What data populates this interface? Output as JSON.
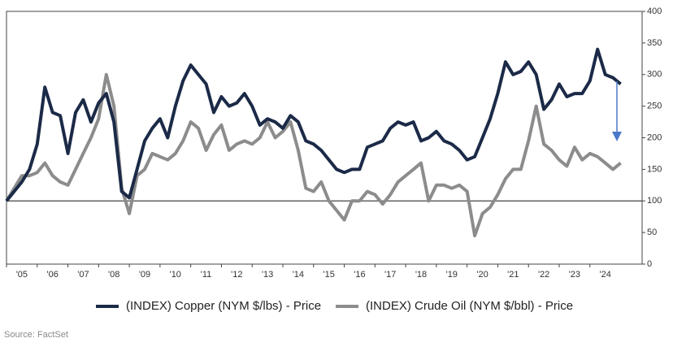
{
  "chart_data": {
    "type": "line",
    "source": "Source: FactSet",
    "x": [
      2005,
      2005.25,
      2005.5,
      2005.75,
      2006,
      2006.25,
      2006.5,
      2006.75,
      2007,
      2007.25,
      2007.5,
      2007.75,
      2008,
      2008.25,
      2008.5,
      2008.75,
      2009,
      2009.25,
      2009.5,
      2009.75,
      2010,
      2010.25,
      2010.5,
      2010.75,
      2011,
      2011.25,
      2011.5,
      2011.75,
      2012,
      2012.25,
      2012.5,
      2012.75,
      2013,
      2013.25,
      2013.5,
      2013.75,
      2014,
      2014.25,
      2014.5,
      2014.75,
      2015,
      2015.25,
      2015.5,
      2015.75,
      2016,
      2016.25,
      2016.5,
      2016.75,
      2017,
      2017.25,
      2017.5,
      2017.75,
      2018,
      2018.25,
      2018.5,
      2018.75,
      2019,
      2019.25,
      2019.5,
      2019.75,
      2020,
      2020.25,
      2020.5,
      2020.75,
      2021,
      2021.25,
      2021.5,
      2021.75,
      2022,
      2022.25,
      2022.5,
      2022.75,
      2023,
      2023.25,
      2023.5,
      2023.75,
      2024,
      2024.25,
      2024.5,
      2024.75,
      2025
    ],
    "series": [
      {
        "name": "(INDEX) Copper (NYM $/lbs) - Price",
        "color": "#1b2a47",
        "values": [
          100,
          115,
          130,
          150,
          190,
          280,
          240,
          235,
          175,
          240,
          260,
          225,
          255,
          270,
          225,
          115,
          105,
          150,
          195,
          215,
          230,
          200,
          250,
          290,
          315,
          300,
          285,
          240,
          265,
          250,
          255,
          270,
          250,
          220,
          230,
          225,
          215,
          235,
          225,
          195,
          190,
          180,
          165,
          150,
          145,
          150,
          150,
          185,
          190,
          195,
          215,
          225,
          220,
          225,
          195,
          200,
          210,
          195,
          190,
          180,
          165,
          170,
          200,
          230,
          270,
          320,
          300,
          305,
          320,
          300,
          245,
          260,
          285,
          265,
          270,
          270,
          290,
          340,
          300,
          295,
          285
        ]
      },
      {
        "name": "(INDEX) Crude Oil (NYM $/bbl) - Price",
        "color": "#8c8c8c",
        "values": [
          100,
          120,
          140,
          140,
          145,
          160,
          140,
          130,
          125,
          150,
          175,
          200,
          230,
          300,
          250,
          120,
          80,
          140,
          150,
          175,
          170,
          165,
          175,
          195,
          225,
          215,
          180,
          205,
          220,
          180,
          190,
          195,
          190,
          200,
          225,
          200,
          210,
          225,
          180,
          120,
          115,
          130,
          100,
          85,
          70,
          100,
          100,
          115,
          110,
          95,
          110,
          130,
          140,
          150,
          160,
          100,
          125,
          125,
          120,
          125,
          115,
          45,
          80,
          90,
          110,
          135,
          150,
          150,
          195,
          250,
          190,
          180,
          165,
          155,
          185,
          165,
          175,
          170,
          160,
          150,
          160
        ]
      }
    ],
    "reference_line": 100,
    "xlim": [
      2005,
      2025.7
    ],
    "xticks": [
      {
        "value": 2005,
        "label": "'05"
      },
      {
        "value": 2006,
        "label": "'06"
      },
      {
        "value": 2007,
        "label": "'07"
      },
      {
        "value": 2008,
        "label": "'08"
      },
      {
        "value": 2009,
        "label": "'09"
      },
      {
        "value": 2010,
        "label": "'10"
      },
      {
        "value": 2011,
        "label": "'11"
      },
      {
        "value": 2012,
        "label": "'12"
      },
      {
        "value": 2013,
        "label": "'13"
      },
      {
        "value": 2014,
        "label": "'14"
      },
      {
        "value": 2015,
        "label": "'15"
      },
      {
        "value": 2016,
        "label": "'16"
      },
      {
        "value": 2017,
        "label": "'17"
      },
      {
        "value": 2018,
        "label": "'18"
      },
      {
        "value": 2019,
        "label": "'19"
      },
      {
        "value": 2020,
        "label": "'20"
      },
      {
        "value": 2021,
        "label": "'21"
      },
      {
        "value": 2022,
        "label": "'22"
      },
      {
        "value": 2023,
        "label": "'23"
      },
      {
        "value": 2024,
        "label": "'24"
      }
    ],
    "ylim": [
      0,
      400
    ],
    "yticks": [
      0,
      50,
      100,
      150,
      200,
      250,
      300,
      350,
      400
    ],
    "y_axis_side": "right",
    "legend": "bottom"
  }
}
